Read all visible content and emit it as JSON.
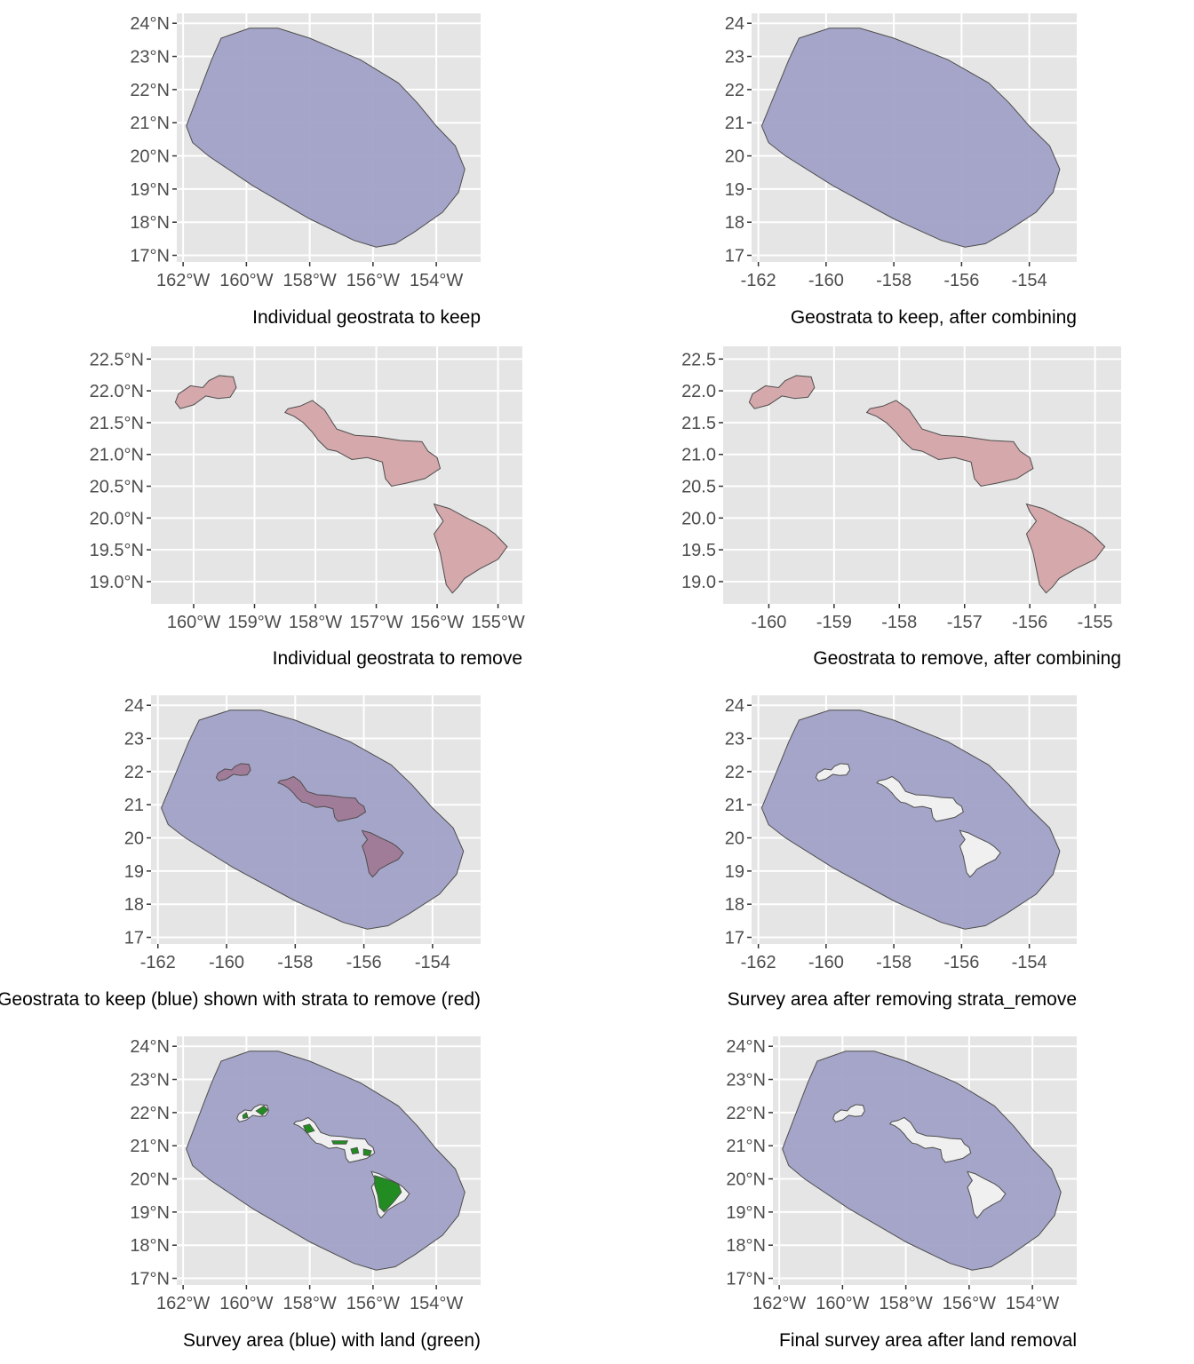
{
  "colors": {
    "panel_bg": "#e5e5e5",
    "grid": "#ffffff",
    "survey_fill": "#a1a1c7",
    "remove_fill": "#d5a8ab",
    "overlap_fill": "#a17c99",
    "land_fill": "#228b22",
    "hole_fill": "#f0f0f0",
    "outline": "#4d4d4d"
  },
  "chart_data": [
    {
      "type": "map",
      "caption": "Individual geostrata to keep",
      "layers": [
        "survey"
      ],
      "xlim": [
        -162.2,
        -152.6
      ],
      "ylim": [
        16.8,
        24.3
      ],
      "x_ticks": [
        -162,
        -160,
        -158,
        -156,
        -154
      ],
      "x_tick_labels": [
        "162°W",
        "160°W",
        "158°W",
        "156°W",
        "154°W"
      ],
      "y_ticks": [
        17,
        18,
        19,
        20,
        21,
        22,
        23,
        24
      ],
      "y_tick_labels": [
        "17°N",
        "18°N",
        "19°N",
        "20°N",
        "21°N",
        "22°N",
        "23°N",
        "24°N"
      ]
    },
    {
      "type": "map",
      "caption": "Geostrata to keep, after combining",
      "layers": [
        "survey"
      ],
      "xlim": [
        -162.2,
        -152.6
      ],
      "ylim": [
        16.8,
        24.3
      ],
      "x_ticks": [
        -162,
        -160,
        -158,
        -156,
        -154
      ],
      "x_tick_labels": [
        "-162",
        "-160",
        "-158",
        "-156",
        "-154"
      ],
      "y_ticks": [
        17,
        18,
        19,
        20,
        21,
        22,
        23,
        24
      ],
      "y_tick_labels": [
        "17",
        "18",
        "19",
        "20",
        "21",
        "22",
        "23",
        "24"
      ]
    },
    {
      "type": "map",
      "caption": "Individual geostrata to remove",
      "layers": [
        "remove"
      ],
      "xlim": [
        -160.7,
        -154.6
      ],
      "ylim": [
        18.65,
        22.7
      ],
      "x_ticks": [
        -160,
        -159,
        -158,
        -157,
        -156,
        -155
      ],
      "x_tick_labels": [
        "160°W",
        "159°W",
        "158°W",
        "157°W",
        "156°W",
        "155°W"
      ],
      "y_ticks": [
        19.0,
        19.5,
        20.0,
        20.5,
        21.0,
        21.5,
        22.0,
        22.5
      ],
      "y_tick_labels": [
        "19.0°N",
        "19.5°N",
        "20.0°N",
        "20.5°N",
        "21.0°N",
        "21.5°N",
        "22.0°N",
        "22.5°N"
      ]
    },
    {
      "type": "map",
      "caption": "Geostrata to remove, after combining",
      "layers": [
        "remove"
      ],
      "xlim": [
        -160.7,
        -154.6
      ],
      "ylim": [
        18.65,
        22.7
      ],
      "x_ticks": [
        -160,
        -159,
        -158,
        -157,
        -156,
        -155
      ],
      "x_tick_labels": [
        "-160",
        "-159",
        "-158",
        "-157",
        "-156",
        "-155"
      ],
      "y_ticks": [
        19.0,
        19.5,
        20.0,
        20.5,
        21.0,
        21.5,
        22.0,
        22.5
      ],
      "y_tick_labels": [
        "19.0",
        "19.5",
        "20.0",
        "20.5",
        "21.0",
        "21.5",
        "22.0",
        "22.5"
      ]
    },
    {
      "type": "map",
      "caption": "Geostrata to keep (blue) shown with strata to remove (red)",
      "layers": [
        "survey",
        "overlap"
      ],
      "xlim": [
        -162.2,
        -152.6
      ],
      "ylim": [
        16.8,
        24.3
      ],
      "x_ticks": [
        -162,
        -160,
        -158,
        -156,
        -154
      ],
      "x_tick_labels": [
        "-162",
        "-160",
        "-158",
        "-156",
        "-154"
      ],
      "y_ticks": [
        17,
        18,
        19,
        20,
        21,
        22,
        23,
        24
      ],
      "y_tick_labels": [
        "17",
        "18",
        "19",
        "20",
        "21",
        "22",
        "23",
        "24"
      ]
    },
    {
      "type": "map",
      "caption": "Survey area after removing strata_remove",
      "layers": [
        "survey",
        "holes"
      ],
      "xlim": [
        -162.2,
        -152.6
      ],
      "ylim": [
        16.8,
        24.3
      ],
      "x_ticks": [
        -162,
        -160,
        -158,
        -156,
        -154
      ],
      "x_tick_labels": [
        "-162",
        "-160",
        "-158",
        "-156",
        "-154"
      ],
      "y_ticks": [
        17,
        18,
        19,
        20,
        21,
        22,
        23,
        24
      ],
      "y_tick_labels": [
        "17",
        "18",
        "19",
        "20",
        "21",
        "22",
        "23",
        "24"
      ]
    },
    {
      "type": "map",
      "caption": "Survey area (blue) with land (green)",
      "layers": [
        "survey",
        "holes",
        "land"
      ],
      "xlim": [
        -162.2,
        -152.6
      ],
      "ylim": [
        16.8,
        24.3
      ],
      "x_ticks": [
        -162,
        -160,
        -158,
        -156,
        -154
      ],
      "x_tick_labels": [
        "162°W",
        "160°W",
        "158°W",
        "156°W",
        "154°W"
      ],
      "y_ticks": [
        17,
        18,
        19,
        20,
        21,
        22,
        23,
        24
      ],
      "y_tick_labels": [
        "17°N",
        "18°N",
        "19°N",
        "20°N",
        "21°N",
        "22°N",
        "23°N",
        "24°N"
      ]
    },
    {
      "type": "map",
      "caption": "Final survey area after land removal",
      "layers": [
        "survey",
        "holes"
      ],
      "xlim": [
        -162.2,
        -152.6
      ],
      "ylim": [
        16.8,
        24.3
      ],
      "x_ticks": [
        -162,
        -160,
        -158,
        -156,
        -154
      ],
      "x_tick_labels": [
        "162°W",
        "160°W",
        "158°W",
        "156°W",
        "154°W"
      ],
      "y_ticks": [
        17,
        18,
        19,
        20,
        21,
        22,
        23,
        24
      ],
      "y_tick_labels": [
        "17°N",
        "18°N",
        "19°N",
        "20°N",
        "21°N",
        "22°N",
        "23°N",
        "24°N"
      ]
    }
  ]
}
